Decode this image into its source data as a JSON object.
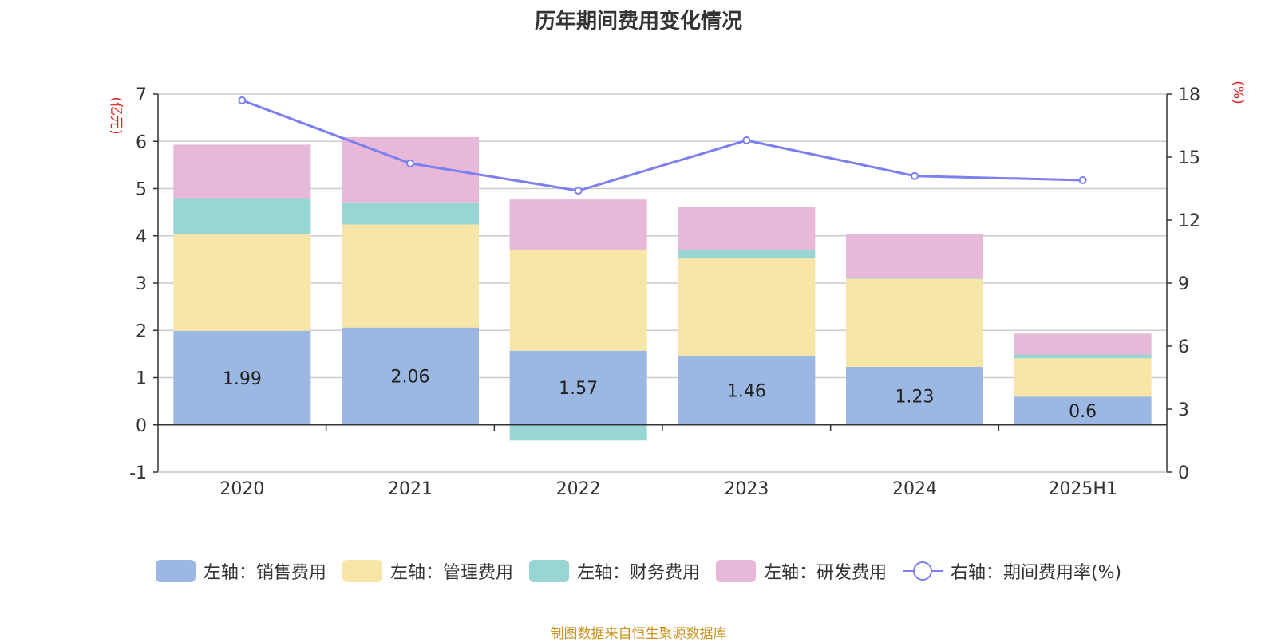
{
  "chart_data": {
    "type": "bar",
    "stacked": true,
    "title": "历年期间费用变化情况",
    "categories": [
      "2020",
      "2021",
      "2022",
      "2023",
      "2024",
      "2025H1"
    ],
    "left_axis": {
      "unit": "(亿元)",
      "ylim": [
        -1,
        7
      ],
      "ticks": [
        -1,
        0,
        1,
        2,
        3,
        4,
        5,
        6,
        7
      ]
    },
    "right_axis": {
      "unit": "(%)",
      "ylim": [
        0,
        18
      ],
      "ticks": [
        0,
        3,
        6,
        9,
        12,
        15,
        18
      ]
    },
    "series": [
      {
        "name": "左轴：销售费用",
        "type": "bar",
        "axis": "left",
        "color": "#9bb8e2",
        "values": [
          1.99,
          2.06,
          1.57,
          1.46,
          1.23,
          0.6
        ],
        "labels": [
          "1.99",
          "2.06",
          "1.57",
          "1.46",
          "1.23",
          "0.6"
        ]
      },
      {
        "name": "左轴：管理费用",
        "type": "bar",
        "axis": "left",
        "color": "#f8e6a8",
        "values": [
          2.05,
          2.18,
          2.14,
          2.06,
          1.86,
          0.81
        ]
      },
      {
        "name": "左轴：财务费用",
        "type": "bar",
        "axis": "left",
        "color": "#98d5d5",
        "values": [
          0.76,
          0.47,
          -0.33,
          0.18,
          0.02,
          0.08
        ]
      },
      {
        "name": "左轴：研发费用",
        "type": "bar",
        "axis": "left",
        "color": "#e8b8d8",
        "values": [
          1.13,
          1.38,
          1.06,
          0.91,
          0.93,
          0.44
        ]
      },
      {
        "name": "右轴：期间费用率(%)",
        "type": "line",
        "axis": "right",
        "color": "#7b7ff0",
        "values": [
          17.7,
          14.7,
          13.4,
          15.8,
          14.1,
          13.9
        ]
      }
    ],
    "grid": true,
    "legend_position": "bottom"
  },
  "source_note": "制图数据来自恒生聚源数据库"
}
